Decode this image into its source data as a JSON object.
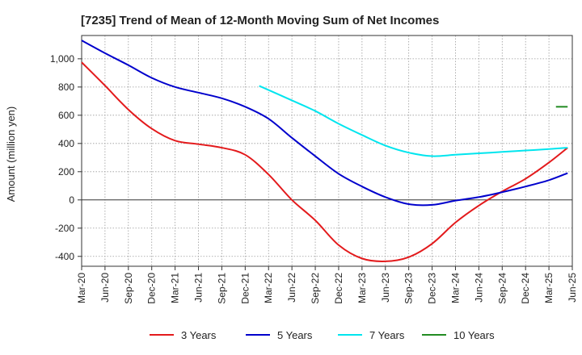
{
  "chart_data": {
    "type": "line",
    "title": "[7235]  Trend of Mean of 12-Month Moving Sum of Net Incomes",
    "xlabel": "",
    "ylabel": "Amount (million yen)",
    "ylim": [
      -470,
      1165
    ],
    "y_ticks": [
      -400,
      -200,
      0,
      200,
      400,
      600,
      800,
      1000
    ],
    "y_tick_labels": [
      "-400",
      "-200",
      "0",
      "200",
      "400",
      "600",
      "800",
      "1,000"
    ],
    "x_tick_labels": [
      "Mar-20",
      "Jun-20",
      "Sep-20",
      "Dec-20",
      "Mar-21",
      "Jun-21",
      "Sep-21",
      "Dec-21",
      "Mar-22",
      "Jun-22",
      "Sep-22",
      "Dec-22",
      "Mar-23",
      "Jun-23",
      "Sep-23",
      "Dec-23",
      "Mar-24",
      "Jun-24",
      "Sep-24",
      "Dec-24",
      "Mar-25",
      "Jun-25"
    ],
    "grid": true,
    "legend_position": "bottom",
    "series": [
      {
        "name": "3 Years",
        "color": "#e31a1c",
        "points": [
          [
            0,
            975
          ],
          [
            1,
            810
          ],
          [
            2,
            640
          ],
          [
            3,
            505
          ],
          [
            4,
            420
          ],
          [
            5,
            395
          ],
          [
            6,
            370
          ],
          [
            7,
            320
          ],
          [
            8,
            180
          ],
          [
            9,
            0
          ],
          [
            10,
            -145
          ],
          [
            11,
            -320
          ],
          [
            12,
            -415
          ],
          [
            13,
            -435
          ],
          [
            14,
            -405
          ],
          [
            15,
            -310
          ],
          [
            16,
            -160
          ],
          [
            17,
            -40
          ],
          [
            18,
            60
          ],
          [
            19,
            150
          ],
          [
            20,
            265
          ],
          [
            20.8,
            370
          ]
        ]
      },
      {
        "name": "5 Years",
        "color": "#0000cc",
        "points": [
          [
            0,
            1130
          ],
          [
            1,
            1040
          ],
          [
            2,
            955
          ],
          [
            3,
            865
          ],
          [
            4,
            800
          ],
          [
            5,
            760
          ],
          [
            6,
            720
          ],
          [
            7,
            660
          ],
          [
            8,
            575
          ],
          [
            9,
            440
          ],
          [
            10,
            310
          ],
          [
            11,
            185
          ],
          [
            12,
            95
          ],
          [
            13,
            20
          ],
          [
            14,
            -30
          ],
          [
            15,
            -35
          ],
          [
            16,
            -5
          ],
          [
            17,
            20
          ],
          [
            18,
            55
          ],
          [
            19,
            95
          ],
          [
            20,
            140
          ],
          [
            20.8,
            190
          ]
        ]
      },
      {
        "name": "7 Years",
        "color": "#00e5ee",
        "points": [
          [
            7.6,
            808
          ],
          [
            9,
            705
          ],
          [
            10,
            630
          ],
          [
            11,
            540
          ],
          [
            12,
            460
          ],
          [
            13,
            385
          ],
          [
            14,
            335
          ],
          [
            15,
            310
          ],
          [
            16,
            320
          ],
          [
            17,
            330
          ],
          [
            18,
            340
          ],
          [
            19,
            350
          ],
          [
            20,
            360
          ],
          [
            20.8,
            370
          ]
        ]
      },
      {
        "name": "10 Years",
        "color": "#228b22",
        "points": [
          [
            20.3,
            660
          ],
          [
            20.8,
            660
          ]
        ]
      }
    ]
  }
}
